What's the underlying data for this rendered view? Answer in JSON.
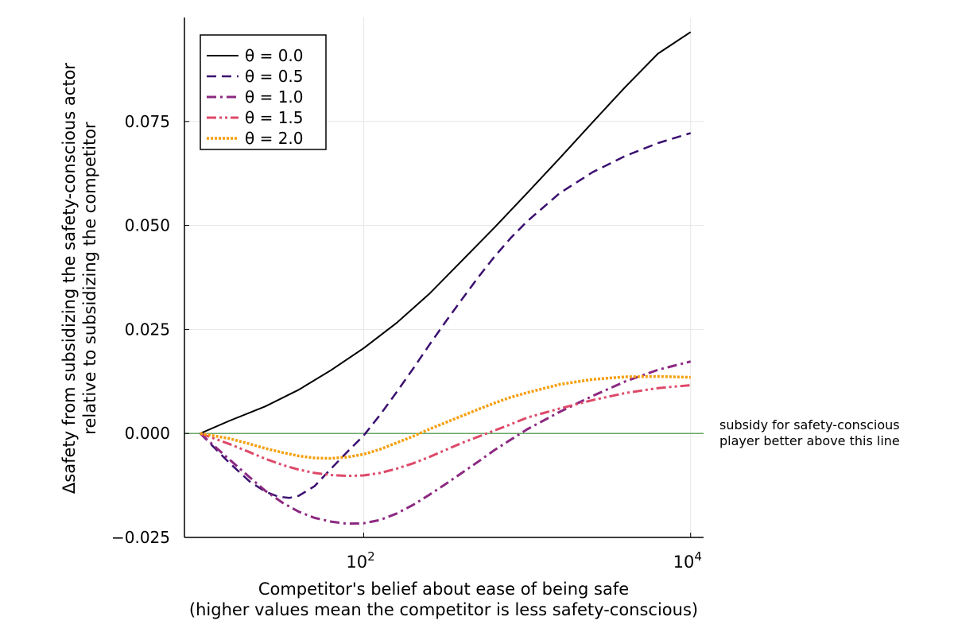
{
  "chart_data": {
    "type": "line",
    "title": "",
    "xlabel_line1": "Competitor's belief about ease of being safe",
    "xlabel_line2": "(higher values mean the competitor is less safety-conscious)",
    "ylabel_line1": "Δsafety from subsidizing the safety-conscious actor",
    "ylabel_line2": "relative to subsidizing the competitor",
    "x_scale": "log10",
    "xlim": [
      8,
      12000
    ],
    "ylim": [
      -0.025,
      0.1
    ],
    "x_ticks": [
      {
        "value": 100,
        "base": "10",
        "exp": "2"
      },
      {
        "value": 10000,
        "base": "10",
        "exp": "4"
      }
    ],
    "y_ticks": [
      {
        "value": -0.025,
        "label": "−0.025"
      },
      {
        "value": 0.0,
        "label": "0.000"
      },
      {
        "value": 0.025,
        "label": "0.025"
      },
      {
        "value": 0.05,
        "label": "0.050"
      },
      {
        "value": 0.075,
        "label": "0.075"
      }
    ],
    "grid": true,
    "legend_position": "top-left",
    "reference_line": {
      "y": 0,
      "color": "#6aa86a"
    },
    "annotation_line1": "subsidy for safety-conscious",
    "annotation_line2": "player better above this line",
    "series": [
      {
        "name": "θ = 0.0",
        "color": "#000000",
        "dash": "solid",
        "x": [
          10,
          15,
          25,
          40,
          63,
          100,
          158,
          251,
          398,
          631,
          1000,
          1585,
          2512,
          3981,
          6310,
          10000
        ],
        "y": [
          0.0,
          0.003,
          0.0065,
          0.0105,
          0.0152,
          0.0205,
          0.0265,
          0.0335,
          0.0415,
          0.0495,
          0.0578,
          0.0662,
          0.0748,
          0.0833,
          0.0913,
          0.0965
        ]
      },
      {
        "name": "θ = 0.5",
        "color": "#3b0f70",
        "dash": "dash",
        "x": [
          10,
          15,
          20,
          25,
          30,
          35,
          40,
          50,
          63,
          79,
          100,
          126,
          158,
          200,
          251,
          316,
          398,
          501,
          631,
          794,
          1000,
          1585,
          2512,
          3981,
          6310,
          10000
        ],
        "y": [
          0.0,
          -0.007,
          -0.0115,
          -0.014,
          -0.0152,
          -0.0155,
          -0.015,
          -0.0127,
          -0.0085,
          -0.0045,
          -0.0005,
          0.0045,
          0.0098,
          0.0155,
          0.0212,
          0.0268,
          0.0322,
          0.0375,
          0.0425,
          0.047,
          0.051,
          0.0578,
          0.0628,
          0.0667,
          0.0698,
          0.0722
        ]
      },
      {
        "name": "θ = 1.0",
        "color": "#8c2981",
        "dash": "dashdot",
        "x": [
          10,
          15,
          20,
          25,
          32,
          40,
          50,
          63,
          79,
          100,
          126,
          158,
          200,
          251,
          316,
          398,
          501,
          631,
          794,
          1000,
          1585,
          2512,
          3981,
          6310,
          10000
        ],
        "y": [
          0.0,
          -0.0062,
          -0.0105,
          -0.0138,
          -0.0167,
          -0.0188,
          -0.0203,
          -0.0212,
          -0.0217,
          -0.0216,
          -0.0208,
          -0.0193,
          -0.0172,
          -0.0148,
          -0.0122,
          -0.0095,
          -0.0068,
          -0.004,
          -0.0015,
          0.001,
          0.0052,
          0.009,
          0.0125,
          0.0153,
          0.0173
        ]
      },
      {
        "name": "θ = 1.5",
        "color": "#de4968",
        "dash": "dashdotdot",
        "x": [
          10,
          15,
          20,
          25,
          32,
          40,
          50,
          63,
          79,
          100,
          126,
          158,
          200,
          251,
          316,
          398,
          501,
          631,
          794,
          1000,
          1585,
          2512,
          3981,
          6310,
          10000
        ],
        "y": [
          0.0,
          -0.0025,
          -0.0045,
          -0.0061,
          -0.0076,
          -0.0087,
          -0.0095,
          -0.01,
          -0.0102,
          -0.0101,
          -0.0095,
          -0.0085,
          -0.0072,
          -0.0057,
          -0.004,
          -0.0023,
          -0.0008,
          0.0007,
          0.0022,
          0.0038,
          0.006,
          0.008,
          0.0097,
          0.0109,
          0.0116
        ]
      },
      {
        "name": "θ = 2.0",
        "color": "#f59e0b",
        "dash": "dot",
        "x": [
          10,
          15,
          20,
          25,
          32,
          40,
          50,
          63,
          79,
          100,
          126,
          158,
          200,
          251,
          316,
          398,
          501,
          631,
          794,
          1000,
          1585,
          2512,
          3981,
          6310,
          10000
        ],
        "y": [
          0.0,
          -0.0012,
          -0.0025,
          -0.0036,
          -0.0046,
          -0.0054,
          -0.0059,
          -0.006,
          -0.0057,
          -0.005,
          -0.0038,
          -0.0023,
          -0.0007,
          0.001,
          0.0026,
          0.0042,
          0.0058,
          0.0073,
          0.0087,
          0.0098,
          0.0118,
          0.013,
          0.0136,
          0.0137,
          0.0135
        ]
      }
    ]
  }
}
